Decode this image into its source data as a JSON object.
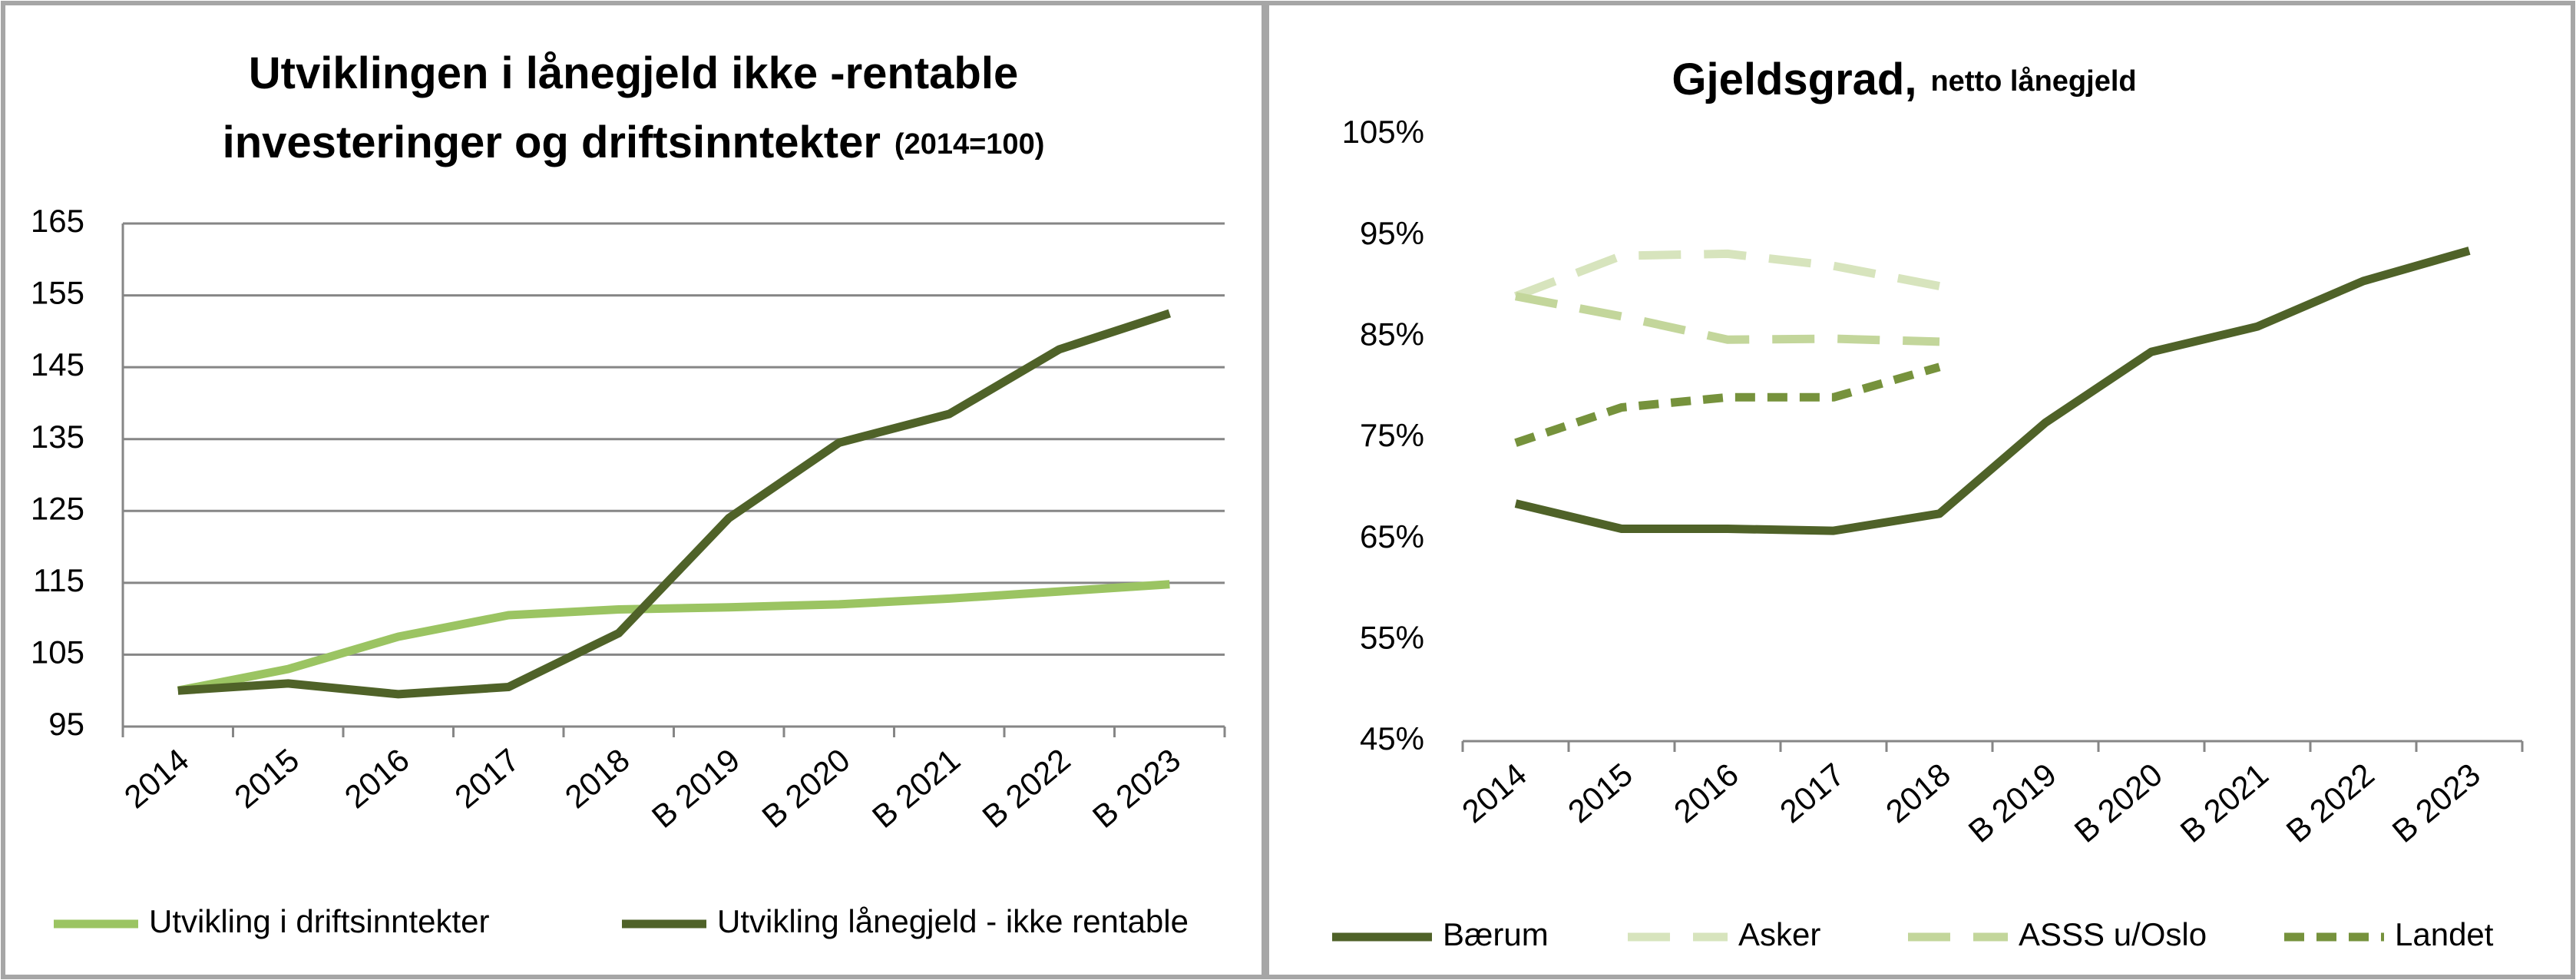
{
  "chart_data": [
    {
      "type": "line",
      "title": [
        "Utviklingen i lånegjeld ikke -rentable",
        "investeringer og driftsinntekter"
      ],
      "subtitle": "(2014=100)",
      "categories": [
        "2014",
        "2015",
        "2016",
        "2017",
        "2018",
        "B 2019",
        "B 2020",
        "B 2021",
        "B 2022",
        "B 2023"
      ],
      "series": [
        {
          "name": "Utvikling i driftsinntekter",
          "color": "#9bc462",
          "dash": "solid",
          "values": [
            100,
            103,
            107.5,
            110.5,
            111.3,
            111.6,
            112,
            112.8,
            113.8,
            114.8
          ]
        },
        {
          "name": "Utvikling lånegjeld - ikke rentable",
          "color": "#4f6228",
          "dash": "solid",
          "values": [
            100,
            101,
            99.5,
            100.5,
            108,
            124,
            134.5,
            138.5,
            147.5,
            152.5
          ]
        }
      ],
      "ylim": [
        95,
        165
      ],
      "yticks": [
        95,
        105,
        115,
        125,
        135,
        145,
        155,
        165
      ],
      "grid": true,
      "legend": "bottom"
    },
    {
      "type": "line",
      "title": [
        "Gjeldsgrad,"
      ],
      "subtitle": "netto lånegjeld",
      "categories": [
        "2014",
        "2015",
        "2016",
        "2017",
        "2018",
        "B 2019",
        "B 2020",
        "B 2021",
        "B 2022",
        "B 2023"
      ],
      "series": [
        {
          "name": "Bærum",
          "color": "#4f6228",
          "dash": "solid",
          "values": [
            68.5,
            66,
            66,
            65.8,
            67.5,
            76.5,
            83.5,
            86,
            90.5,
            93.5
          ]
        },
        {
          "name": "Asker",
          "color": "#d7e4bd",
          "dash": "long",
          "values": [
            89,
            93,
            93.2,
            92,
            90,
            null,
            null,
            null,
            null,
            null
          ]
        },
        {
          "name": "ASSS u/Oslo",
          "color": "#c3d69b",
          "dash": "long",
          "values": [
            89,
            87,
            84.7,
            84.8,
            84.5,
            null,
            null,
            null,
            null,
            null
          ]
        },
        {
          "name": "Landet",
          "color": "#76923c",
          "dash": "short",
          "values": [
            74.5,
            78,
            79,
            79,
            82,
            null,
            null,
            null,
            null,
            null
          ]
        }
      ],
      "ylim": [
        45,
        105
      ],
      "yticks": [
        {
          "value": 45,
          "label": "45%"
        },
        {
          "value": 55,
          "label": "55%"
        },
        {
          "value": 65,
          "label": "65%"
        },
        {
          "value": 75,
          "label": "75%"
        },
        {
          "value": 85,
          "label": "85%"
        },
        {
          "value": 95,
          "label": "95%"
        },
        {
          "value": 105,
          "label": "105%"
        }
      ],
      "grid": false,
      "legend": "bottom"
    }
  ]
}
